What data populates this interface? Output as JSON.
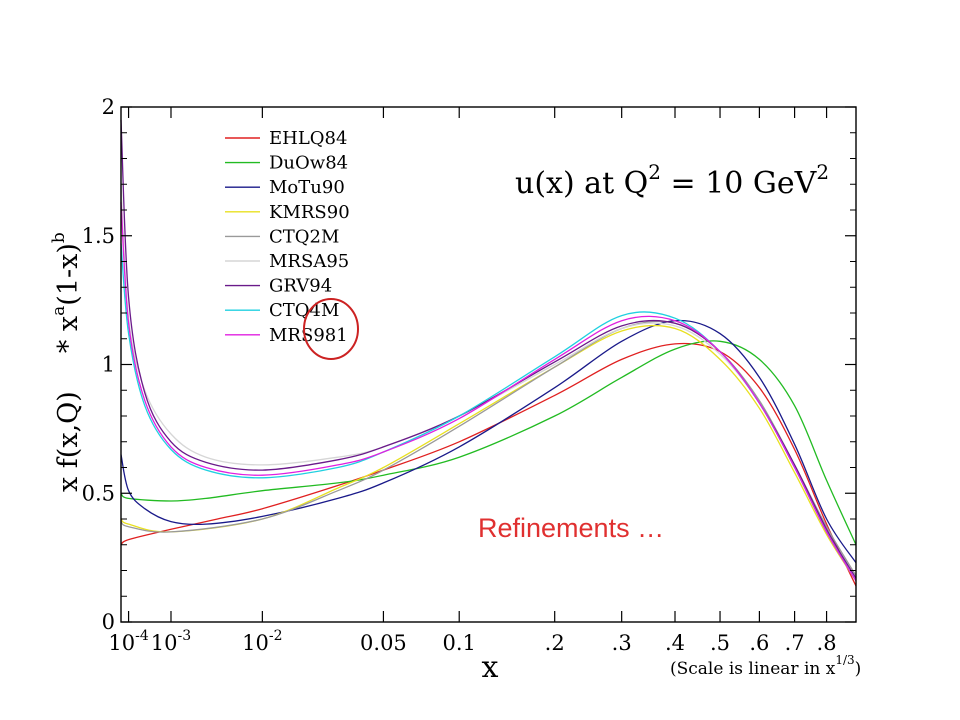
{
  "chart_data": {
    "type": "line",
    "title": {
      "main": "u(x) at Q",
      "sup1": "2",
      "mid": " = 10 GeV",
      "sup2": "2"
    },
    "xlabel": "x",
    "x_scale_note": {
      "pre": "(Scale is linear in x",
      "sup": "1/3",
      "post": ")"
    },
    "ylabel": {
      "p1": "x f(x,Q)",
      "p2": "* x",
      "sup_a": "a",
      "p3": "(1-x)",
      "sup_b": "b"
    },
    "x_scale": "cube-root",
    "xlim": [
      5e-05,
      0.9
    ],
    "ylim": [
      0,
      2
    ],
    "y_ticks": [
      "0",
      "0.5",
      "1",
      "1.5",
      "2"
    ],
    "x_ticks": [
      {
        "x": 0.0001,
        "base": "10",
        "exp": "-4"
      },
      {
        "x": 0.001,
        "base": "10",
        "exp": "-3"
      },
      {
        "x": 0.01,
        "base": "10",
        "exp": "-2"
      },
      {
        "x": 0.05,
        "label": "0.05"
      },
      {
        "x": 0.1,
        "label": "0.1"
      },
      {
        "x": 0.2,
        "label": ".2"
      },
      {
        "x": 0.3,
        "label": ".3"
      },
      {
        "x": 0.4,
        "label": ".4"
      },
      {
        "x": 0.5,
        "label": ".5"
      },
      {
        "x": 0.6,
        "label": ".6"
      },
      {
        "x": 0.7,
        "label": ".7"
      },
      {
        "x": 0.8,
        "label": ".8"
      }
    ],
    "legend_position": "top-left",
    "series": [
      {
        "name": "EHLQ84",
        "color": "#e02020",
        "points": [
          [
            5e-05,
            0.3
          ],
          [
            0.0001,
            0.32
          ],
          [
            0.001,
            0.36
          ],
          [
            0.004,
            0.4
          ],
          [
            0.01,
            0.44
          ],
          [
            0.03,
            0.53
          ],
          [
            0.05,
            0.59
          ],
          [
            0.1,
            0.7
          ],
          [
            0.2,
            0.88
          ],
          [
            0.3,
            1.02
          ],
          [
            0.4,
            1.08
          ],
          [
            0.5,
            1.05
          ],
          [
            0.6,
            0.91
          ],
          [
            0.7,
            0.67
          ],
          [
            0.8,
            0.38
          ],
          [
            0.9,
            0.14
          ]
        ]
      },
      {
        "name": "DuOw84",
        "color": "#22bb22",
        "points": [
          [
            5e-05,
            0.5
          ],
          [
            0.0001,
            0.48
          ],
          [
            0.001,
            0.47
          ],
          [
            0.003,
            0.48
          ],
          [
            0.01,
            0.51
          ],
          [
            0.03,
            0.54
          ],
          [
            0.05,
            0.57
          ],
          [
            0.1,
            0.64
          ],
          [
            0.2,
            0.8
          ],
          [
            0.3,
            0.95
          ],
          [
            0.4,
            1.06
          ],
          [
            0.5,
            1.09
          ],
          [
            0.6,
            1.02
          ],
          [
            0.7,
            0.84
          ],
          [
            0.8,
            0.55
          ],
          [
            0.9,
            0.3
          ]
        ]
      },
      {
        "name": "MoTu90",
        "color": "#1a1a8a",
        "points": [
          [
            5e-05,
            0.65
          ],
          [
            0.0001,
            0.51
          ],
          [
            0.0003,
            0.44
          ],
          [
            0.001,
            0.39
          ],
          [
            0.003,
            0.38
          ],
          [
            0.01,
            0.41
          ],
          [
            0.03,
            0.48
          ],
          [
            0.05,
            0.54
          ],
          [
            0.1,
            0.68
          ],
          [
            0.2,
            0.91
          ],
          [
            0.3,
            1.09
          ],
          [
            0.4,
            1.17
          ],
          [
            0.5,
            1.12
          ],
          [
            0.6,
            0.95
          ],
          [
            0.7,
            0.69
          ],
          [
            0.8,
            0.4
          ],
          [
            0.9,
            0.23
          ]
        ]
      },
      {
        "name": "KMRS90",
        "color": "#e8e020",
        "points": [
          [
            5e-05,
            0.4
          ],
          [
            0.0001,
            0.38
          ],
          [
            0.001,
            0.35
          ],
          [
            0.01,
            0.4
          ],
          [
            0.03,
            0.52
          ],
          [
            0.05,
            0.6
          ],
          [
            0.1,
            0.77
          ],
          [
            0.2,
            0.99
          ],
          [
            0.3,
            1.13
          ],
          [
            0.4,
            1.14
          ],
          [
            0.5,
            1.02
          ],
          [
            0.6,
            0.83
          ],
          [
            0.7,
            0.58
          ],
          [
            0.8,
            0.34
          ],
          [
            0.9,
            0.16
          ]
        ]
      },
      {
        "name": "CTQ2M",
        "color": "#9a9a9a",
        "points": [
          [
            5e-05,
            0.39
          ],
          [
            0.0001,
            0.37
          ],
          [
            0.001,
            0.35
          ],
          [
            0.01,
            0.4
          ],
          [
            0.03,
            0.51
          ],
          [
            0.05,
            0.59
          ],
          [
            0.1,
            0.76
          ],
          [
            0.2,
            0.99
          ],
          [
            0.3,
            1.14
          ],
          [
            0.4,
            1.16
          ],
          [
            0.5,
            1.05
          ],
          [
            0.6,
            0.86
          ],
          [
            0.7,
            0.61
          ],
          [
            0.8,
            0.37
          ],
          [
            0.9,
            0.18
          ]
        ]
      },
      {
        "name": "MRSA95",
        "color": "#d6d6d6",
        "points": [
          [
            5e-05,
            1.7
          ],
          [
            0.0001,
            1.18
          ],
          [
            0.0003,
            0.9
          ],
          [
            0.001,
            0.73
          ],
          [
            0.003,
            0.64
          ],
          [
            0.01,
            0.61
          ],
          [
            0.03,
            0.64
          ],
          [
            0.05,
            0.68
          ],
          [
            0.1,
            0.8
          ],
          [
            0.2,
            1.0
          ],
          [
            0.3,
            1.14
          ],
          [
            0.4,
            1.15
          ],
          [
            0.5,
            1.04
          ],
          [
            0.6,
            0.85
          ],
          [
            0.7,
            0.6
          ],
          [
            0.8,
            0.35
          ],
          [
            0.9,
            0.16
          ]
        ]
      },
      {
        "name": "GRV94",
        "color": "#6a1a8a",
        "points": [
          [
            5e-05,
            1.95
          ],
          [
            0.0001,
            1.26
          ],
          [
            0.0003,
            0.89
          ],
          [
            0.001,
            0.7
          ],
          [
            0.003,
            0.62
          ],
          [
            0.01,
            0.59
          ],
          [
            0.03,
            0.63
          ],
          [
            0.05,
            0.68
          ],
          [
            0.1,
            0.8
          ],
          [
            0.2,
            1.01
          ],
          [
            0.3,
            1.15
          ],
          [
            0.4,
            1.16
          ],
          [
            0.5,
            1.05
          ],
          [
            0.6,
            0.85
          ],
          [
            0.7,
            0.61
          ],
          [
            0.8,
            0.36
          ],
          [
            0.9,
            0.17
          ]
        ]
      },
      {
        "name": "CTQ4M",
        "color": "#20d0e0",
        "points": [
          [
            5e-05,
            1.47
          ],
          [
            0.0001,
            1.12
          ],
          [
            0.0003,
            0.84
          ],
          [
            0.001,
            0.67
          ],
          [
            0.003,
            0.59
          ],
          [
            0.01,
            0.56
          ],
          [
            0.03,
            0.6
          ],
          [
            0.05,
            0.66
          ],
          [
            0.1,
            0.8
          ],
          [
            0.2,
            1.03
          ],
          [
            0.3,
            1.19
          ],
          [
            0.4,
            1.18
          ],
          [
            0.5,
            1.05
          ],
          [
            0.6,
            0.85
          ],
          [
            0.7,
            0.6
          ],
          [
            0.8,
            0.35
          ],
          [
            0.9,
            0.16
          ]
        ]
      },
      {
        "name": "MRS981",
        "color": "#e020e0",
        "points": [
          [
            5e-05,
            1.63
          ],
          [
            0.0001,
            1.16
          ],
          [
            0.0003,
            0.86
          ],
          [
            0.001,
            0.68
          ],
          [
            0.003,
            0.6
          ],
          [
            0.01,
            0.57
          ],
          [
            0.03,
            0.61
          ],
          [
            0.05,
            0.66
          ],
          [
            0.1,
            0.79
          ],
          [
            0.2,
            1.02
          ],
          [
            0.3,
            1.17
          ],
          [
            0.4,
            1.17
          ],
          [
            0.5,
            1.05
          ],
          [
            0.6,
            0.85
          ],
          [
            0.7,
            0.6
          ],
          [
            0.8,
            0.35
          ],
          [
            0.9,
            0.16
          ]
        ]
      }
    ],
    "annotation": {
      "text": "Refinements …",
      "color": "#e03030"
    },
    "highlight_color": "#cc2222"
  }
}
